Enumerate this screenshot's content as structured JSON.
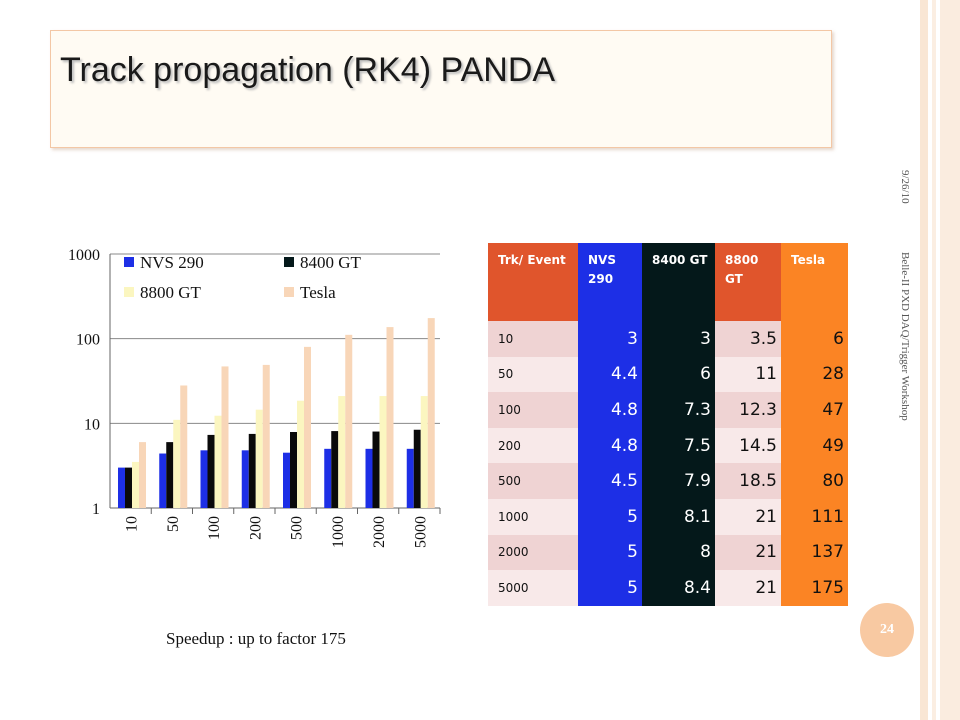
{
  "slide": {
    "title": "Track propagation (RK4) PANDA",
    "date": "9/26/10",
    "footer_side": "Belle-II PXD DAQ/Trigger Workshop",
    "page_number": "24",
    "caption": "Speedup : up to factor 175"
  },
  "colors": {
    "nvs290": "#1d2fe6",
    "gt8400": "#04181a",
    "gt8800": "#fbf6c0",
    "tesla": "#f8d6b8",
    "header_trk": "#e0552c",
    "header_tesla": "#fb8424"
  },
  "chart_data": {
    "type": "bar",
    "scale": "log",
    "ylim": [
      1,
      1000
    ],
    "yticks": [
      "1",
      "10",
      "100",
      "1000"
    ],
    "categories": [
      "10",
      "50",
      "100",
      "200",
      "500",
      "1000",
      "2000",
      "5000"
    ],
    "legend_position": "top",
    "series": [
      {
        "name": "NVS 290",
        "values": [
          3,
          4.4,
          4.8,
          4.8,
          4.5,
          5,
          5,
          5
        ]
      },
      {
        "name": "8400 GT",
        "values": [
          3,
          6,
          7.3,
          7.5,
          7.9,
          8.1,
          8,
          8.4
        ]
      },
      {
        "name": "8800 GT",
        "values": [
          3.5,
          11,
          12.3,
          14.5,
          18.5,
          21,
          21,
          21
        ]
      },
      {
        "name": "Tesla",
        "values": [
          6,
          28,
          47,
          49,
          80,
          111,
          137,
          175
        ]
      }
    ]
  },
  "table": {
    "headers": [
      "Trk/ Event",
      "NVS 290",
      "8400 GT",
      "8800 GT",
      "Tesla"
    ],
    "rows": [
      [
        "10",
        "3",
        "3",
        "3.5",
        "6"
      ],
      [
        "50",
        "4.4",
        "6",
        "11",
        "28"
      ],
      [
        "100",
        "4.8",
        "7.3",
        "12.3",
        "47"
      ],
      [
        "200",
        "4.8",
        "7.5",
        "14.5",
        "49"
      ],
      [
        "500",
        "4.5",
        "7.9",
        "18.5",
        "80"
      ],
      [
        "1000",
        "5",
        "8.1",
        "21",
        "111"
      ],
      [
        "2000",
        "5",
        "8",
        "21",
        "137"
      ],
      [
        "5000",
        "5",
        "8.4",
        "21",
        "175"
      ]
    ]
  }
}
